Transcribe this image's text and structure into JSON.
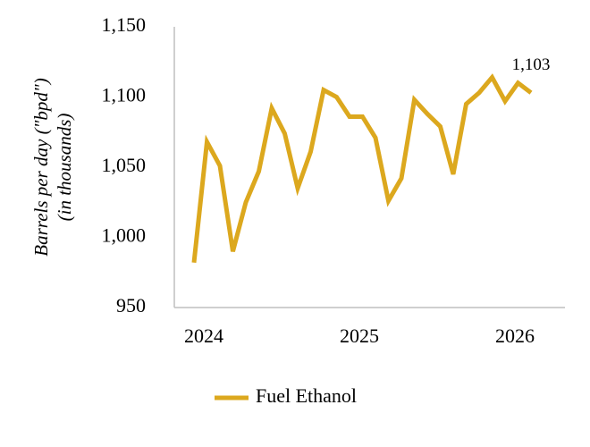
{
  "chart_data": {
    "type": "line",
    "y_label": [
      "Barrels per day (\"bpd\")",
      "(in thousands)"
    ],
    "categories": [
      "2024",
      null,
      null,
      null,
      null,
      null,
      null,
      null,
      null,
      null,
      null,
      null,
      "2025",
      null,
      null,
      null,
      null,
      null,
      null,
      null,
      null,
      null,
      null,
      null,
      "2026",
      null,
      null
    ],
    "series": [
      {
        "name": "Fuel Ethanol",
        "color": "#dca81e",
        "values": [
          982,
          1068,
          1051,
          990,
          1025,
          1047,
          1092,
          1074,
          1035,
          1061,
          1105,
          1100,
          1086,
          1086,
          1071,
          1026,
          1042,
          1098,
          1088,
          1079,
          1045,
          1095,
          1103,
          1114,
          1097,
          1110,
          1103
        ],
        "value_labels": [
          null,
          null,
          null,
          null,
          null,
          null,
          null,
          null,
          null,
          null,
          null,
          null,
          null,
          null,
          null,
          null,
          null,
          null,
          null,
          null,
          null,
          null,
          null,
          null,
          null,
          null,
          "1,103"
        ]
      }
    ],
    "ylim": [
      950,
      1150
    ],
    "yticks": [
      950,
      {
        "value": 1000,
        "label": "1,000"
      },
      {
        "value": 1050,
        "label": "1,050"
      },
      {
        "value": 1100,
        "label": "1,100"
      },
      {
        "value": 1150,
        "label": "1,150"
      }
    ],
    "grid": false,
    "legend": "bottom"
  }
}
